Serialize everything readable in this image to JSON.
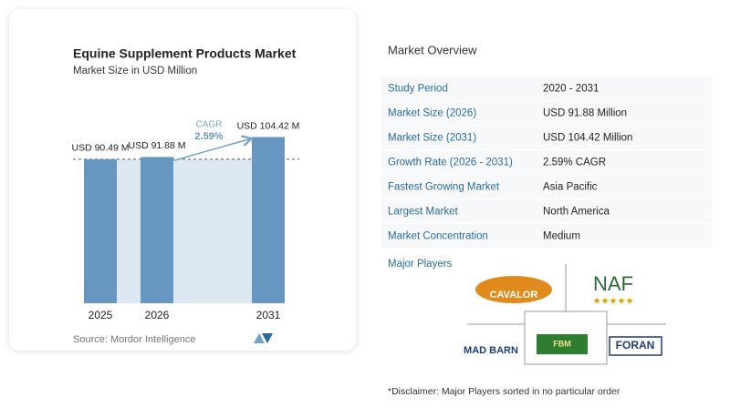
{
  "chart_data": {
    "type": "bar",
    "title": "Equine Supplement Products Market",
    "subtitle": "Market Size in USD Million",
    "categories": [
      "2025",
      "2026",
      "2031"
    ],
    "values": [
      90.49,
      91.88,
      104.42
    ],
    "value_labels": [
      "USD 90.49 M",
      "USD 91.88 M",
      "USD 104.42 M"
    ],
    "color": "#6597c0",
    "ylim": [
      0,
      115
    ],
    "annotation": {
      "label": "CAGR",
      "value_label": "2.59%"
    },
    "source": "Source: Mordor Intelligence"
  },
  "overview": {
    "title": "Market Overview",
    "rows": [
      [
        "Study Period",
        "2020 - 2031"
      ],
      [
        "Market Size (2026)",
        "USD 91.88 Million"
      ],
      [
        "Market Size (2031)",
        "USD 104.42 Million"
      ],
      [
        "Growth Rate (2026 - 2031)",
        "2.59% CAGR"
      ],
      [
        "Fastest Growing Market",
        "Asia Pacific"
      ],
      [
        "Largest Market",
        "North America"
      ],
      [
        "Market Concentration",
        "Medium"
      ]
    ]
  },
  "players": {
    "title": "Major Players",
    "logos": [
      "CAVALOR",
      "NAF",
      "MAD BARN",
      "FBM",
      "FORAN"
    ]
  },
  "disclaimer": "*Disclaimer: Major Players sorted in no particular order"
}
